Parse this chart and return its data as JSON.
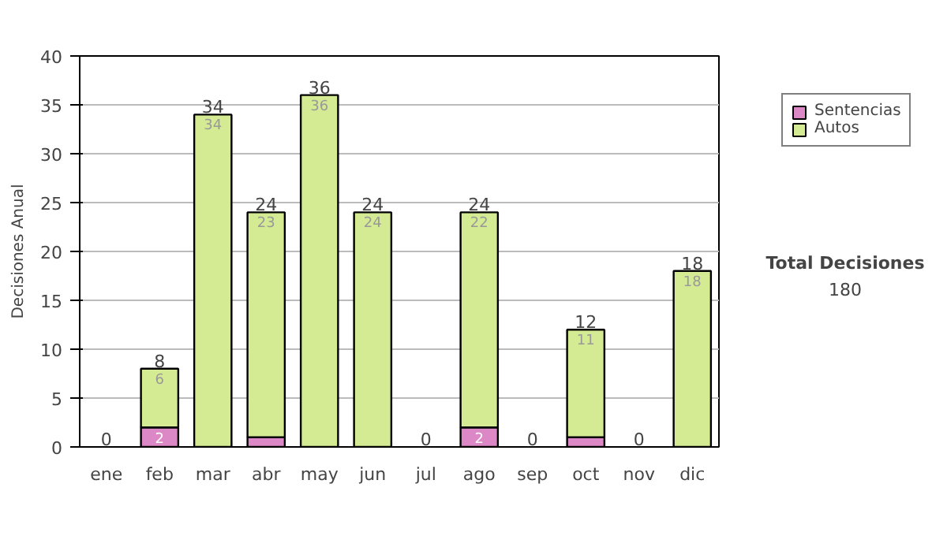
{
  "chart_data": {
    "type": "bar",
    "stacked": true,
    "ylabel": "Decisiones Anual",
    "categories": [
      "ene",
      "feb",
      "mar",
      "abr",
      "may",
      "jun",
      "jul",
      "ago",
      "sep",
      "oct",
      "nov",
      "dic"
    ],
    "series": [
      {
        "name": "Sentencias",
        "color": "#dd88c6",
        "values": [
          0,
          2,
          0,
          1,
          0,
          0,
          0,
          2,
          0,
          1,
          0,
          0
        ],
        "value_labels": [
          null,
          "2",
          null,
          null,
          null,
          null,
          null,
          "2",
          null,
          null,
          null,
          null
        ]
      },
      {
        "name": "Autos",
        "color": "#d4eb94",
        "values": [
          0,
          6,
          34,
          23,
          36,
          24,
          0,
          22,
          0,
          11,
          0,
          18
        ],
        "value_labels": [
          null,
          "6",
          "34",
          "23",
          "36",
          "24",
          null,
          "22",
          null,
          "11",
          null,
          "18"
        ]
      }
    ],
    "totals": [
      "0",
      "8",
      "34",
      "24",
      "36",
      "24",
      "0",
      "24",
      "0",
      "12",
      "0",
      "18"
    ],
    "ylim": [
      0,
      40
    ],
    "yticks": [
      0,
      5,
      10,
      15,
      20,
      25,
      30,
      35,
      40
    ],
    "grid": "y",
    "legend": "right",
    "annotations": [
      "Total Decisiones",
      "180"
    ]
  }
}
